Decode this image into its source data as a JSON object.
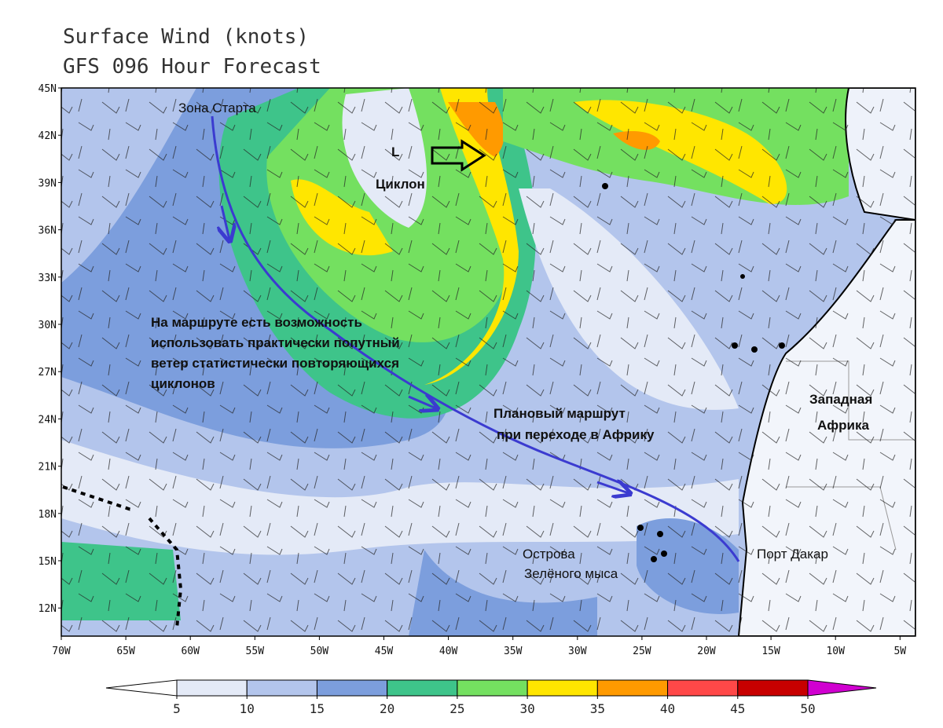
{
  "header": {
    "title": [
      "Surface Wind (knots)",
      "GFS 096 Hour Forecast"
    ]
  },
  "axes": {
    "lat_labels": [
      "45N",
      "42N",
      "39N",
      "36N",
      "33N",
      "30N",
      "27N",
      "24N",
      "21N",
      "18N",
      "15N",
      "12N"
    ],
    "lon_labels": [
      "70W",
      "65W",
      "60W",
      "55W",
      "50W",
      "45W",
      "40W",
      "35W",
      "30W",
      "25W",
      "20W",
      "15W",
      "10W",
      "5W"
    ]
  },
  "annotations": {
    "start": "Зона Старта",
    "low": "L",
    "cyclone": "Циклон",
    "note": [
      "На маршруте есть возможность",
      "использовать практически попутный",
      "ветер статистически повторяющихся",
      "циклонов"
    ],
    "route": [
      "Плановый маршрут",
      "при переходе в Африку"
    ],
    "africa": [
      "Западная",
      "Африка"
    ],
    "islands": [
      "Острова",
      "Зелёного мыса"
    ],
    "port": "Порт Дакар"
  },
  "colorbar": {
    "ticks": [
      5,
      10,
      15,
      20,
      25,
      30,
      35,
      40,
      45,
      50
    ],
    "colors": [
      "#ffffff",
      "#e4eaf7",
      "#b3c5ec",
      "#7c9edd",
      "#3ec48a",
      "#74e060",
      "#ffe600",
      "#ff9a00",
      "#ff4848",
      "#c80000",
      "#d000d0"
    ]
  }
}
